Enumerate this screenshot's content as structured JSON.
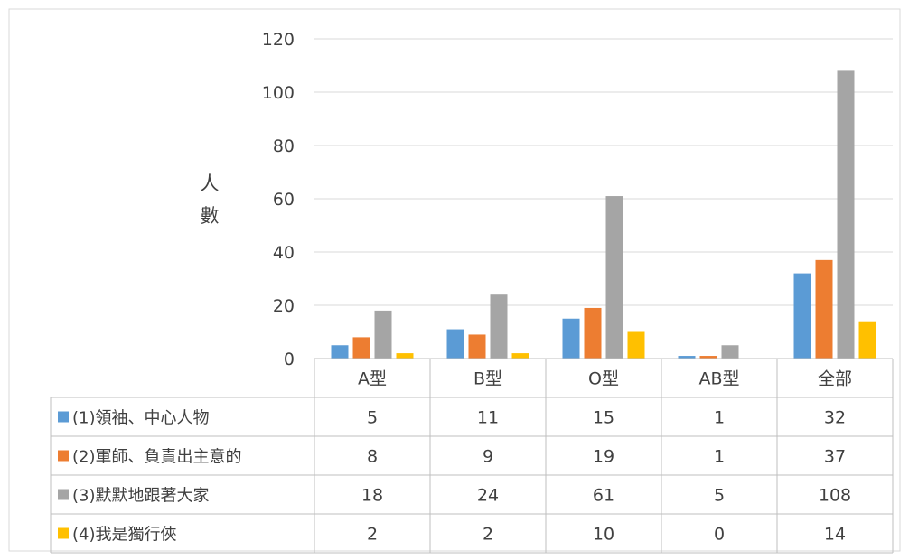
{
  "chart_data": {
    "type": "bar",
    "ylabel": "人數",
    "ylim": [
      0,
      120
    ],
    "yticks": [
      0,
      20,
      40,
      60,
      80,
      100,
      120
    ],
    "ytick_labels": [
      "0",
      "20",
      "40",
      "60",
      "80",
      "100",
      "120"
    ],
    "grid": true,
    "legend": "data-table-left",
    "categories": [
      "A型",
      "B型",
      "O型",
      "AB型",
      "全部"
    ],
    "series": [
      {
        "name": "(1)領袖、中心人物",
        "color": "#5B9BD5",
        "values": [
          5,
          11,
          15,
          1,
          32
        ]
      },
      {
        "name": "(2)軍師、負責出主意的",
        "color": "#ED7D31",
        "values": [
          8,
          9,
          19,
          1,
          37
        ]
      },
      {
        "name": "(3)默默地跟著大家",
        "color": "#A5A5A5",
        "values": [
          18,
          24,
          61,
          5,
          108
        ]
      },
      {
        "name": "(4)我是獨行俠",
        "color": "#FFC000",
        "values": [
          2,
          2,
          10,
          0,
          14
        ]
      }
    ],
    "table_rows": [
      [
        "5",
        "11",
        "15",
        "1",
        "32"
      ],
      [
        "8",
        "9",
        "19",
        "1",
        "37"
      ],
      [
        "18",
        "24",
        "61",
        "5",
        "108"
      ],
      [
        "2",
        "2",
        "10",
        "0",
        "14"
      ]
    ]
  }
}
